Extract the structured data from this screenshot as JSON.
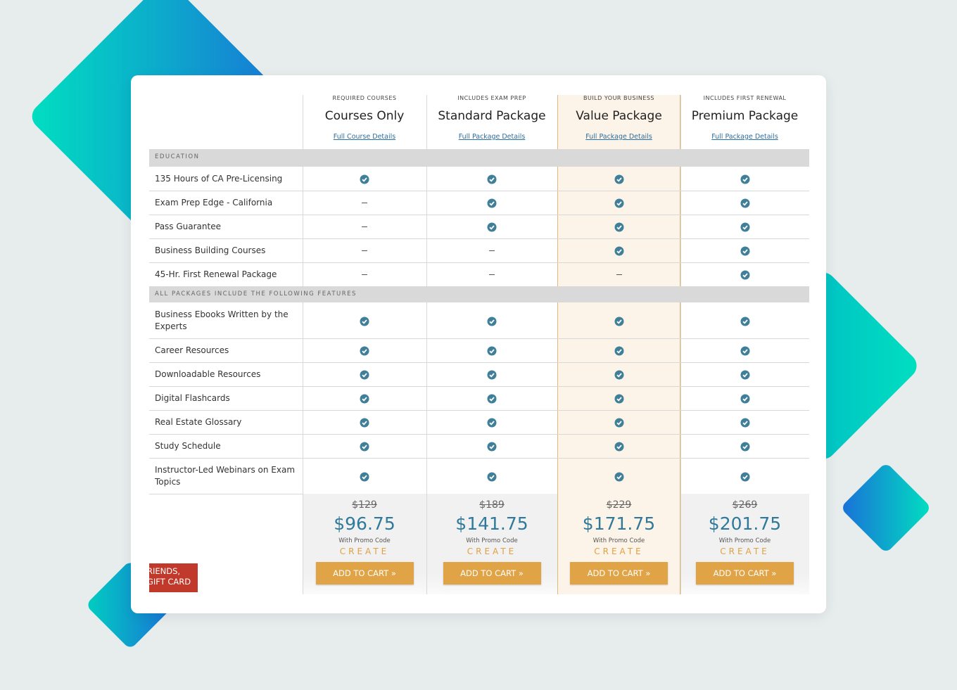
{
  "packages": [
    {
      "tagline": "REQUIRED COURSES",
      "name": "Courses Only",
      "link": "Full Course Details",
      "old_price": "$129",
      "price": "$96.75",
      "promo_label": "With Promo Code",
      "promo_code": "CREATE",
      "button": "ADD TO CART »"
    },
    {
      "tagline": "INCLUDES EXAM PREP",
      "name": "Standard Package",
      "link": "Full Package Details",
      "old_price": "$189",
      "price": "$141.75",
      "promo_label": "With Promo Code",
      "promo_code": "CREATE",
      "button": "ADD TO CART »"
    },
    {
      "tagline": "BUILD YOUR BUSINESS",
      "name": "Value Package",
      "link": "Full Package Details",
      "old_price": "$229",
      "price": "$171.75",
      "promo_label": "With Promo Code",
      "promo_code": "CREATE",
      "button": "ADD TO CART »"
    },
    {
      "tagline": "INCLUDES FIRST RENEWAL",
      "name": "Premium Package",
      "link": "Full Package Details",
      "old_price": "$269",
      "price": "$201.75",
      "promo_label": "With Promo Code",
      "promo_code": "CREATE",
      "button": "ADD TO CART »"
    }
  ],
  "sections": [
    {
      "title": "EDUCATION",
      "features": [
        {
          "label": "135 Hours of CA Pre-Licensing",
          "included": [
            true,
            true,
            true,
            true
          ]
        },
        {
          "label": "Exam Prep Edge - California",
          "included": [
            false,
            true,
            true,
            true
          ]
        },
        {
          "label": "Pass Guarantee",
          "included": [
            false,
            true,
            true,
            true
          ]
        },
        {
          "label": "Business Building Courses",
          "included": [
            false,
            false,
            true,
            true
          ]
        },
        {
          "label": "45-Hr. First Renewal Package",
          "included": [
            false,
            false,
            false,
            true
          ]
        }
      ]
    },
    {
      "title": "ALL PACKAGES INCLUDE THE FOLLOWING FEATURES",
      "features": [
        {
          "label": "Business Ebooks Written by the Experts",
          "included": [
            true,
            true,
            true,
            true
          ]
        },
        {
          "label": "Career Resources",
          "included": [
            true,
            true,
            true,
            true
          ]
        },
        {
          "label": "Downloadable Resources",
          "included": [
            true,
            true,
            true,
            true
          ]
        },
        {
          "label": "Digital Flashcards",
          "included": [
            true,
            true,
            true,
            true
          ]
        },
        {
          "label": "Real Estate Glossary",
          "included": [
            true,
            true,
            true,
            true
          ]
        },
        {
          "label": "Study Schedule",
          "included": [
            true,
            true,
            true,
            true
          ]
        },
        {
          "label": "Instructor-Led Webinars on Exam Topics",
          "included": [
            true,
            true,
            true,
            true
          ]
        }
      ]
    }
  ],
  "gift_card": [
    "RIENDS,",
    "GIFT CARD"
  ]
}
